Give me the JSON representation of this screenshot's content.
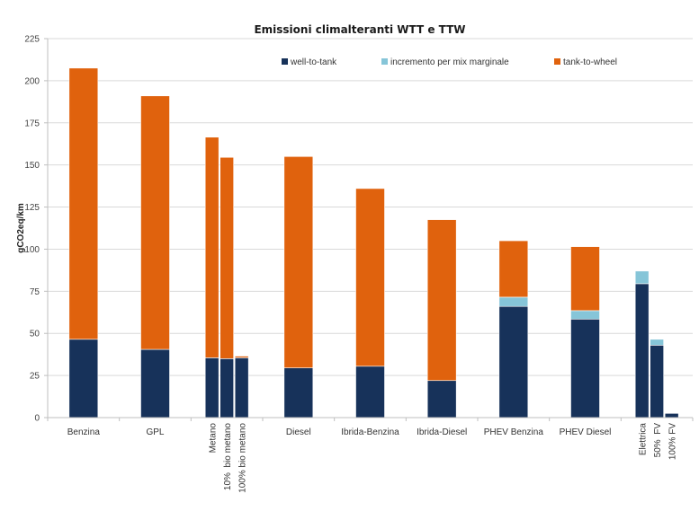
{
  "chart_data": {
    "type": "bar",
    "stacked": true,
    "title": "Emissioni climalteranti WTT e TTW",
    "xlabel": "",
    "ylabel": "gCO2eq/km",
    "ylim": [
      0,
      225
    ],
    "yticks": [
      0,
      25,
      50,
      75,
      100,
      125,
      150,
      175,
      200,
      225
    ],
    "grid": true,
    "legend_position": "top",
    "groups": [
      {
        "label": "Benzina",
        "bars": [
          0
        ]
      },
      {
        "label": "GPL",
        "bars": [
          1
        ]
      },
      {
        "label": "",
        "bars": [
          2,
          3,
          4
        ]
      },
      {
        "label": "Diesel",
        "bars": [
          5
        ]
      },
      {
        "label": "Ibrida-Benzina",
        "bars": [
          6
        ]
      },
      {
        "label": "Ibrida-Diesel",
        "bars": [
          7
        ]
      },
      {
        "label": "PHEV Benzina",
        "bars": [
          8
        ]
      },
      {
        "label": "PHEV Diesel",
        "bars": [
          9
        ]
      },
      {
        "label": "",
        "bars": [
          10,
          11,
          12
        ]
      }
    ],
    "categories": [
      "Benzina",
      "GPL",
      "Metano",
      "10%  bio metano",
      "100% bio metano",
      "Diesel",
      "Ibrida-Benzina",
      "Ibrida-Diesel",
      "PHEV Benzina",
      "PHEV Diesel",
      "Elettrica",
      "50%  FV",
      "100% FV"
    ],
    "category_label_rotated": [
      false,
      false,
      true,
      true,
      true,
      false,
      false,
      false,
      false,
      false,
      true,
      true,
      true
    ],
    "series": [
      {
        "name": "well-to-tank",
        "color": "#17325a",
        "values": [
          46.5,
          40.5,
          35.5,
          35,
          35.5,
          29.5,
          30.5,
          22,
          66,
          58.5,
          79.5,
          43,
          2.5
        ]
      },
      {
        "name": "incremento per mix marginale",
        "color": "#86c5d8",
        "values": [
          0,
          0,
          0,
          0,
          0,
          0,
          0,
          0,
          5.5,
          5,
          7.5,
          3.5,
          0
        ]
      },
      {
        "name": "tank-to-wheel",
        "color": "#e0620d",
        "values": [
          161,
          150.5,
          131,
          119.5,
          1,
          125.5,
          105.5,
          95.5,
          33.5,
          38,
          0,
          0,
          0
        ]
      }
    ]
  }
}
